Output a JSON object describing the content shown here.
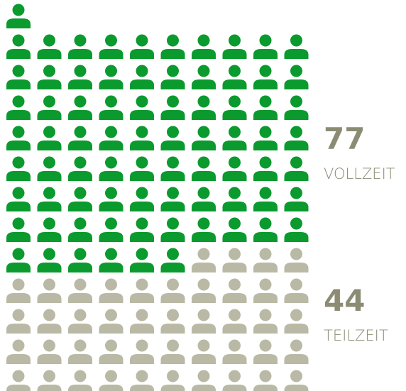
{
  "chart_data": {
    "type": "pictogram",
    "series": [
      {
        "name": "VOLLZEIT",
        "value": 77,
        "color": "#0a9a2e"
      },
      {
        "name": "TEILZEIT",
        "value": 44,
        "color": "#b9b9a5"
      }
    ],
    "label_color": "#8c8c74"
  }
}
